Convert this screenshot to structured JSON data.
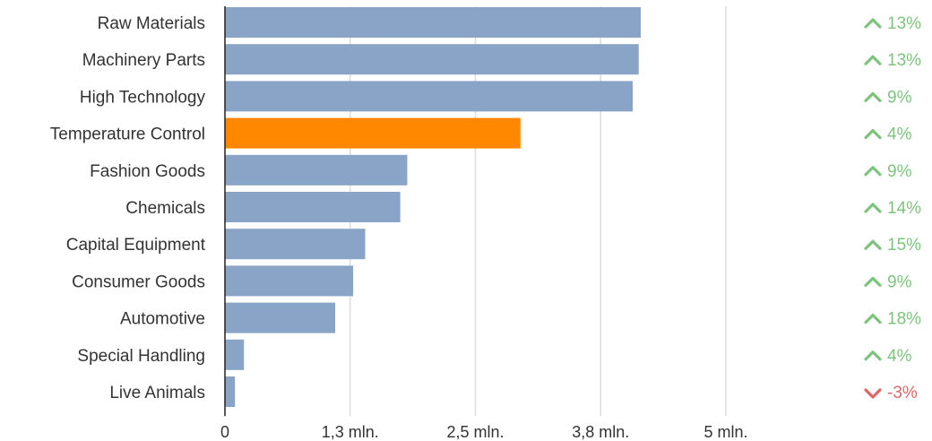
{
  "chart_data": {
    "type": "bar",
    "orientation": "horizontal",
    "categories": [
      "Raw Materials",
      "Machinery Parts",
      "High Technology",
      "Temperature Control",
      "Fashion Goods",
      "Chemicals",
      "Capital Equipment",
      "Consumer Goods",
      "Automotive",
      "Special Handling",
      "Live Animals"
    ],
    "values": [
      4150000,
      4130000,
      4070000,
      2950000,
      1820000,
      1750000,
      1400000,
      1280000,
      1100000,
      190000,
      100000
    ],
    "highlighted": "Temperature Control",
    "xlim": [
      0,
      5000000
    ],
    "xticks": [
      0,
      1250000,
      2500000,
      3750000,
      5000000
    ],
    "xtick_labels": [
      "0",
      "1,3 mln.",
      "2,5 mln.",
      "3,8 mln.",
      "5 mln."
    ],
    "grid": true,
    "changes": [
      {
        "label": "13%",
        "direction": "up"
      },
      {
        "label": "13%",
        "direction": "up"
      },
      {
        "label": "9%",
        "direction": "up"
      },
      {
        "label": "4%",
        "direction": "up"
      },
      {
        "label": "9%",
        "direction": "up"
      },
      {
        "label": "14%",
        "direction": "up"
      },
      {
        "label": "15%",
        "direction": "up"
      },
      {
        "label": "9%",
        "direction": "up"
      },
      {
        "label": "18%",
        "direction": "up"
      },
      {
        "label": "4%",
        "direction": "up"
      },
      {
        "label": "-3%",
        "direction": "down"
      }
    ],
    "title": "",
    "xlabel": "",
    "ylabel": ""
  },
  "colors": {
    "bar": "#8aa4c8",
    "highlight": "#ff8800",
    "grid": "#dddddd",
    "axis": "#222222",
    "text": "#333333",
    "up": "#7cc47c",
    "down": "#e06666"
  },
  "icons": {
    "up": "chevron-up-icon",
    "down": "chevron-down-icon"
  }
}
